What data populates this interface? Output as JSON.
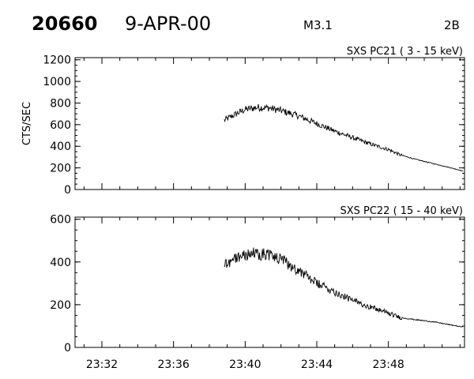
{
  "header": {
    "event_number": "20660",
    "date": "9-APR-00",
    "goes_class": "M3.1",
    "importance": "2B"
  },
  "chart_data": [
    {
      "type": "line",
      "title": "SXS PC21  (  3 - 15 keV)",
      "ylabel": "CTS/SEC",
      "xlabel": "",
      "xlim": [
        "23:30:30",
        "23:52:15"
      ],
      "ylim": [
        0,
        1220
      ],
      "yticks": [
        0,
        200,
        400,
        600,
        800,
        1000,
        1200
      ],
      "xticks": [
        "23:32",
        "23:36",
        "23:40",
        "23:44",
        "23:48"
      ],
      "grid": false,
      "series": [
        {
          "x": [
            "23:38:50",
            "23:39:30",
            "23:40:00",
            "23:40:40",
            "23:41:20",
            "23:42:00",
            "23:43:00",
            "23:44:00",
            "23:45:00",
            "23:46:00",
            "23:47:00",
            "23:48:00",
            "23:48:40",
            "23:49:30",
            "23:50:30",
            "23:51:30",
            "23:52:10"
          ],
          "y": [
            640,
            700,
            740,
            760,
            755,
            730,
            680,
            610,
            540,
            480,
            420,
            370,
            320,
            280,
            240,
            200,
            170
          ]
        }
      ]
    },
    {
      "type": "line",
      "title": "SXS PC22  ( 15 - 40 keV)",
      "ylabel": "",
      "xlabel": "",
      "xlim": [
        "23:30:30",
        "23:52:15"
      ],
      "ylim": [
        0,
        610
      ],
      "yticks": [
        0,
        200,
        400,
        600
      ],
      "xticks": [
        "23:32",
        "23:36",
        "23:40",
        "23:44",
        "23:48"
      ],
      "grid": false,
      "series": [
        {
          "x": [
            "23:38:50",
            "23:39:30",
            "23:40:00",
            "23:40:40",
            "23:41:20",
            "23:42:00",
            "23:43:00",
            "23:44:00",
            "23:45:00",
            "23:46:00",
            "23:47:00",
            "23:48:00",
            "23:48:40",
            "23:49:30",
            "23:50:30",
            "23:51:30",
            "23:52:10"
          ],
          "y": [
            390,
            420,
            435,
            440,
            435,
            410,
            360,
            300,
            260,
            220,
            190,
            160,
            140,
            130,
            120,
            105,
            95
          ]
        }
      ]
    }
  ]
}
